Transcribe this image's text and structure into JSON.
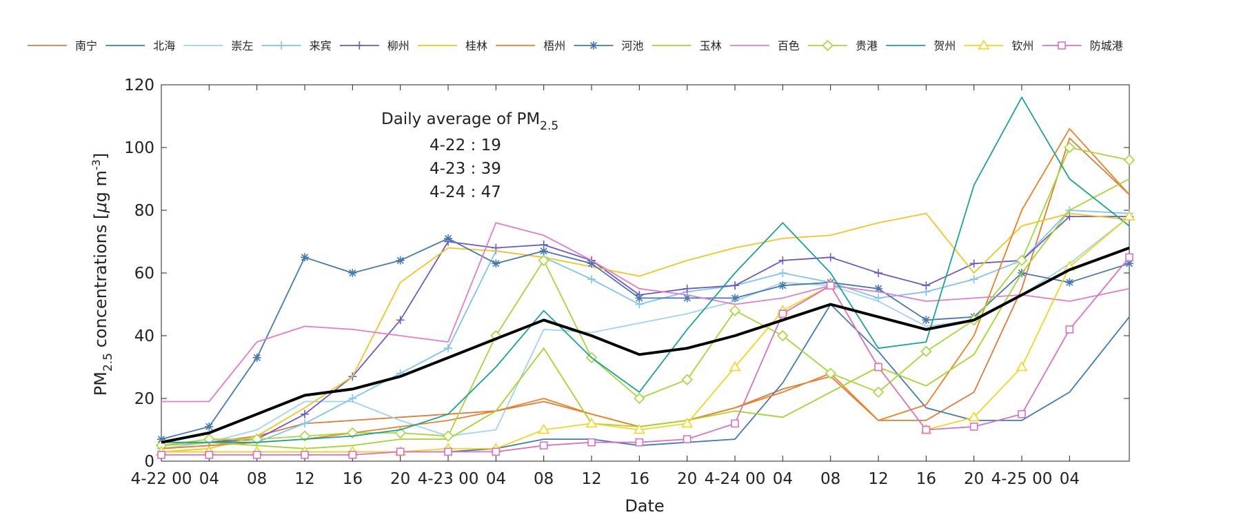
{
  "chart_data": {
    "type": "line",
    "xlabel": "Date",
    "ylabel_parts": [
      "PM",
      "2.5",
      " concentrations [",
      "μ",
      "g m",
      "-3",
      "]"
    ],
    "ylim": [
      0,
      120
    ],
    "yticks": [
      0,
      20,
      40,
      60,
      80,
      100,
      120
    ],
    "xlim": [
      0,
      81
    ],
    "xtick_positions": [
      0,
      4,
      8,
      12,
      16,
      20,
      24,
      28,
      32,
      36,
      40,
      44,
      48,
      52,
      56,
      60,
      64,
      68,
      72,
      76
    ],
    "xtick_labels": [
      "4-22 00",
      "04",
      "08",
      "12",
      "16",
      "20",
      "4-23 00",
      "04",
      "08",
      "12",
      "16",
      "20",
      "4-24 00",
      "04",
      "08",
      "12",
      "16",
      "20",
      "4-25 00",
      "04"
    ],
    "annotation": {
      "title_main": "Daily average of PM",
      "title_sub": "2.5",
      "lines": [
        "4-22 : 19",
        "4-23 : 39",
        "4-24 : 47"
      ]
    },
    "x": [
      0,
      4,
      8,
      12,
      16,
      20,
      24,
      28,
      32,
      36,
      40,
      44,
      48,
      52,
      56,
      60,
      64,
      68,
      72,
      76,
      81
    ],
    "average": {
      "name": "Daily average",
      "color": "#000000",
      "values": [
        6,
        9,
        15,
        21,
        23,
        27,
        33,
        39,
        45,
        40,
        34,
        36,
        40,
        45,
        50,
        46,
        42,
        45,
        53,
        61,
        68
      ]
    },
    "series": [
      {
        "name": "南宁",
        "color": "#e07b39",
        "marker": "none",
        "values": [
          5,
          6,
          8,
          12,
          13,
          14,
          15,
          16,
          19,
          15,
          11,
          13,
          17,
          23,
          27,
          13,
          13,
          22,
          55,
          103,
          85
        ]
      },
      {
        "name": "北海",
        "color": "#3f7ab5",
        "marker": "none",
        "values": [
          3,
          3,
          3,
          3,
          3,
          3,
          3,
          4,
          7,
          7,
          5,
          6,
          7,
          25,
          50,
          35,
          17,
          13,
          13,
          22,
          46
        ]
      },
      {
        "name": "崇左",
        "color": "#9fd3f2",
        "marker": "none",
        "values": [
          4,
          6,
          10,
          19,
          19,
          13,
          8,
          10,
          42,
          41,
          44,
          47,
          51,
          57,
          56,
          51,
          43,
          45,
          53,
          63,
          78
        ]
      },
      {
        "name": "来宾",
        "color": "#7cc4f4",
        "marker": "plus",
        "values": [
          4,
          5,
          6,
          12,
          20,
          28,
          36,
          67,
          65,
          58,
          50,
          54,
          56,
          60,
          57,
          52,
          54,
          58,
          64,
          80,
          79
        ]
      },
      {
        "name": "柳州",
        "color": "#6e57c7",
        "marker": "plus",
        "values": [
          5,
          6,
          7,
          15,
          27,
          45,
          70,
          68,
          69,
          64,
          53,
          55,
          56,
          64,
          65,
          60,
          56,
          63,
          64,
          78,
          78
        ]
      },
      {
        "name": "桂林",
        "color": "#f4c51e",
        "marker": "none",
        "values": [
          3,
          4,
          8,
          17,
          27,
          57,
          68,
          67,
          65,
          62,
          59,
          64,
          68,
          71,
          72,
          76,
          79,
          60,
          75,
          79,
          77
        ]
      },
      {
        "name": "梧州",
        "color": "#f07f22",
        "marker": "none",
        "values": [
          4,
          5,
          6,
          7,
          9,
          11,
          13,
          16,
          20,
          15,
          11,
          13,
          17,
          22,
          28,
          13,
          18,
          40,
          80,
          106,
          85
        ]
      },
      {
        "name": "河池",
        "color": "#4478b0",
        "marker": "star",
        "values": [
          7,
          11,
          33,
          65,
          60,
          64,
          71,
          63,
          67,
          63,
          52,
          52,
          52,
          56,
          57,
          55,
          45,
          46,
          60,
          57,
          63
        ]
      },
      {
        "name": "玉林",
        "color": "#a4d62a",
        "marker": "none",
        "values": [
          5,
          6,
          5,
          4,
          5,
          7,
          7,
          16,
          36,
          12,
          11,
          13,
          16,
          14,
          22,
          30,
          24,
          34,
          60,
          80,
          90
        ]
      },
      {
        "name": "百色",
        "color": "#e27cc9",
        "marker": "none",
        "values": [
          19,
          19,
          38,
          43,
          42,
          40,
          38,
          76,
          72,
          64,
          55,
          53,
          50,
          52,
          56,
          54,
          51,
          52,
          53,
          51,
          55
        ]
      },
      {
        "name": "贵港",
        "color": "#a6d733",
        "marker": "diamond",
        "values": [
          5,
          7,
          7,
          8,
          9,
          9,
          8,
          40,
          64,
          33,
          20,
          26,
          48,
          40,
          28,
          22,
          35,
          45,
          64,
          100,
          96
        ]
      },
      {
        "name": "贺州",
        "color": "#1aa19a",
        "marker": "none",
        "values": [
          6,
          6,
          6,
          7,
          8,
          10,
          15,
          30,
          48,
          33,
          22,
          42,
          60,
          76,
          60,
          36,
          38,
          88,
          116,
          90,
          75
        ]
      },
      {
        "name": "钦州",
        "color": "#f2d61b",
        "marker": "triangle",
        "values": [
          3,
          3,
          3,
          3,
          3,
          3,
          4,
          4,
          10,
          12,
          10,
          12,
          30,
          48,
          56,
          30,
          10,
          14,
          30,
          62,
          78
        ]
      },
      {
        "name": "防城港",
        "color": "#d970c5",
        "marker": "square",
        "values": [
          2,
          2,
          2,
          2,
          2,
          3,
          3,
          3,
          5,
          6,
          6,
          7,
          12,
          47,
          56,
          30,
          10,
          11,
          15,
          42,
          65
        ]
      }
    ]
  }
}
